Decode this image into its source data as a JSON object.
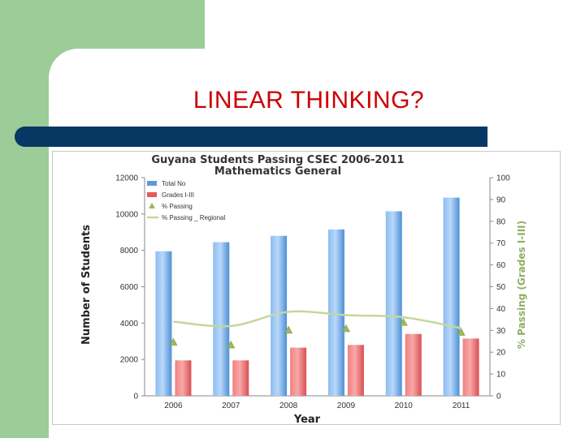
{
  "slide": {
    "title": "LINEAR THINKING?",
    "colors": {
      "accent_green": "#9ccc98",
      "bar_navy": "#073763",
      "title_red": "#cc0000"
    }
  },
  "chart_data": {
    "type": "bar",
    "title": "Guyana Students Passing CSEC 2006-2011",
    "subtitle": "Mathematics General",
    "xlabel": "Year",
    "ylabel": "Number of Students",
    "y2label": "% Passing (Grades I-III)",
    "ylim": [
      0,
      12000
    ],
    "y2lim": [
      0,
      100
    ],
    "yticks": [
      0,
      2000,
      4000,
      6000,
      8000,
      10000,
      12000
    ],
    "y2ticks": [
      0,
      10,
      20,
      30,
      40,
      50,
      60,
      70,
      80,
      90,
      100
    ],
    "categories": [
      "2006",
      "2007",
      "2008",
      "2009",
      "2010",
      "2011"
    ],
    "legend_position": "top-left",
    "grid": false,
    "series": [
      {
        "name": "Total No",
        "kind": "bar",
        "axis": "left",
        "color": "#5b9bd5",
        "values": [
          7950,
          8450,
          8800,
          9150,
          10150,
          10900
        ]
      },
      {
        "name": "Grades I-III",
        "kind": "bar",
        "axis": "left",
        "color": "#e8575a",
        "values": [
          1950,
          1950,
          2650,
          2800,
          3400,
          3150
        ]
      },
      {
        "name": "% Passing",
        "kind": "marker",
        "axis": "right",
        "color": "#9bbb59",
        "values": [
          24.5,
          23.2,
          30,
          30.7,
          33.5,
          29
        ]
      },
      {
        "name": "% Passing _ Regional",
        "kind": "line",
        "axis": "right",
        "color": "#c4d79b",
        "values": [
          34,
          32,
          38.5,
          37,
          36,
          31
        ]
      }
    ]
  }
}
